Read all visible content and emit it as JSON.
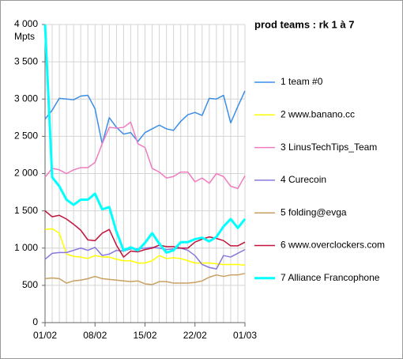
{
  "chart_data": {
    "type": "line",
    "title": "prod teams : rk 1 à 7",
    "y_label": "Mpts",
    "categories": [
      "01/02",
      null,
      null,
      null,
      null,
      null,
      null,
      "08/02",
      null,
      null,
      null,
      null,
      null,
      null,
      "15/02",
      null,
      null,
      null,
      null,
      null,
      null,
      "22/02",
      null,
      null,
      null,
      null,
      null,
      null,
      "01/03"
    ],
    "ylim": [
      0,
      4000
    ],
    "yticks": [
      0,
      500,
      {
        "value": 1000,
        "label": "1 000"
      },
      {
        "value": 1500,
        "label": "1 500"
      },
      {
        "value": 2000,
        "label": "2 000"
      },
      {
        "value": 2500,
        "label": "2 500"
      },
      {
        "value": 3000,
        "label": "3 000"
      },
      {
        "value": 3500,
        "label": "3 500"
      },
      {
        "value": 4000,
        "label": "4 000"
      }
    ],
    "grid": true,
    "legend": "right",
    "series": [
      {
        "name": "1 team #0",
        "color": "#3a8ee6",
        "values": [
          2730,
          2850,
          3010,
          3000,
          2990,
          3040,
          3050,
          2870,
          2400,
          2750,
          2620,
          2530,
          2550,
          2430,
          2550,
          2600,
          2650,
          2600,
          2580,
          2700,
          2790,
          2820,
          2780,
          3010,
          3000,
          3050,
          2680,
          2900,
          3110
        ]
      },
      {
        "name": "2 www.banano.cc",
        "color": "#ffff00",
        "values": [
          1250,
          1260,
          1200,
          920,
          890,
          880,
          860,
          900,
          880,
          880,
          850,
          830,
          830,
          800,
          800,
          830,
          900,
          860,
          870,
          860,
          830,
          800,
          800,
          800,
          790,
          780,
          780,
          780,
          770
        ]
      },
      {
        "name": "3 LinusTechTips_Team",
        "color": "#f07cc0",
        "values": [
          1950,
          2070,
          2050,
          2000,
          2050,
          2080,
          2080,
          2150,
          2400,
          2620,
          2610,
          2620,
          2690,
          2400,
          2350,
          2070,
          2020,
          1940,
          1960,
          2020,
          2020,
          1890,
          1940,
          1870,
          2000,
          1960,
          1830,
          1800,
          1970
        ]
      },
      {
        "name": "4 Curecoin",
        "color": "#8877dd",
        "values": [
          850,
          930,
          940,
          940,
          970,
          1000,
          970,
          1010,
          900,
          920,
          970,
          960,
          990,
          990,
          1000,
          1010,
          1000,
          980,
          990,
          1000,
          970,
          900,
          780,
          740,
          720,
          900,
          880,
          930,
          980
        ]
      },
      {
        "name": "5 folding@evga",
        "color": "#c8a060",
        "values": [
          590,
          600,
          590,
          530,
          560,
          570,
          590,
          620,
          590,
          580,
          570,
          560,
          550,
          560,
          520,
          510,
          550,
          550,
          530,
          530,
          530,
          540,
          560,
          610,
          640,
          620,
          640,
          640,
          660
        ]
      },
      {
        "name": "6 www.overclockers.com",
        "color": "#c0143c",
        "values": [
          1500,
          1420,
          1440,
          1390,
          1320,
          1240,
          1110,
          1100,
          1200,
          1250,
          1040,
          880,
          960,
          950,
          980,
          1000,
          1040,
          1020,
          1020,
          1000,
          1000,
          1080,
          1120,
          1150,
          1130,
          1100,
          1030,
          1030,
          1080
        ]
      },
      {
        "name": "7 Alliance Francophone",
        "color": "#00ffff",
        "width": 3,
        "values": [
          4000,
          1950,
          1830,
          1650,
          1580,
          1650,
          1650,
          1730,
          1520,
          1550,
          1220,
          970,
          1010,
          970,
          1070,
          1200,
          1060,
          940,
          970,
          1080,
          1080,
          1120,
          1140,
          1090,
          1150,
          1290,
          1390,
          1270,
          1390
        ]
      }
    ]
  }
}
